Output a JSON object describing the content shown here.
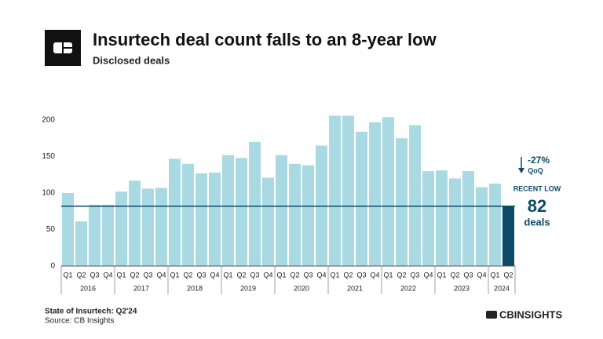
{
  "chart_data": {
    "type": "bar",
    "title": "Insurtech deal count falls to an 8-year low",
    "subtitle": "Disclosed deals",
    "groups": [
      {
        "label": "2016",
        "categories": [
          "Q1",
          "Q2",
          "Q3",
          "Q4"
        ]
      },
      {
        "label": "2017",
        "categories": [
          "Q1",
          "Q2",
          "Q3",
          "Q4"
        ]
      },
      {
        "label": "2018",
        "categories": [
          "Q1",
          "Q2",
          "Q3",
          "Q4"
        ]
      },
      {
        "label": "2019",
        "categories": [
          "Q1",
          "Q2",
          "Q3",
          "Q4"
        ]
      },
      {
        "label": "2020",
        "categories": [
          "Q1",
          "Q2",
          "Q3",
          "Q4"
        ]
      },
      {
        "label": "2021",
        "categories": [
          "Q1",
          "Q2",
          "Q3",
          "Q4"
        ]
      },
      {
        "label": "2022",
        "categories": [
          "Q1",
          "Q2",
          "Q3",
          "Q4"
        ]
      },
      {
        "label": "2023",
        "categories": [
          "Q1",
          "Q2",
          "Q3",
          "Q4"
        ]
      },
      {
        "label": "2024",
        "categories": [
          "Q1",
          "Q2"
        ]
      }
    ],
    "values": [
      100,
      61,
      84,
      84,
      102,
      117,
      106,
      107,
      147,
      140,
      127,
      128,
      152,
      148,
      170,
      121,
      152,
      140,
      138,
      165,
      206,
      206,
      184,
      197,
      204,
      175,
      193,
      130,
      131,
      120,
      130,
      108,
      113,
      82
    ],
    "color": "#a9d9e2",
    "highlight_last_color": "#0c4a67",
    "annotation_color": "#0c4a67",
    "ylim": [
      0,
      200
    ],
    "yticks": [
      0,
      50,
      100,
      150,
      200
    ],
    "annotations": {
      "change": "-27%",
      "change_label": "QoQ",
      "line_label": "RECENT LOW",
      "unit": "deals"
    }
  },
  "footer": {
    "report": "State of Insurtech: Q2'24",
    "source": "Source: CB Insights",
    "logo": "CBINSIGHTS"
  }
}
